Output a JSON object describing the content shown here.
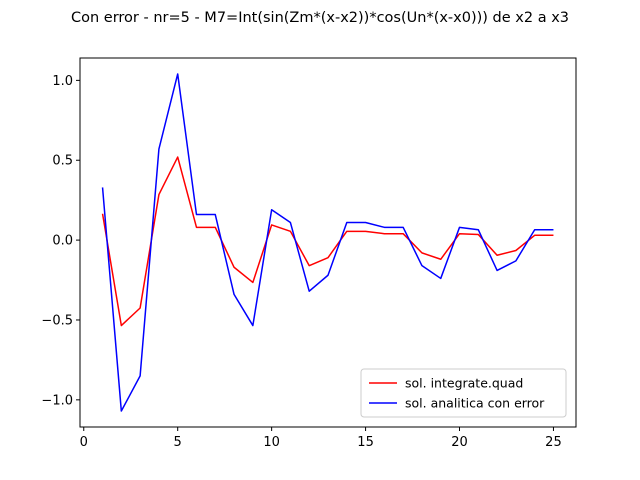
{
  "chart_data": {
    "type": "line",
    "title": "Con error - nr=5 - M7=Int(sin(Zm*(x-x2))*cos(Un*(x-x0))) de x2 a x3",
    "xlabel": "",
    "ylabel": "",
    "xlim": [
      -0.2,
      26.2
    ],
    "ylim": [
      -1.17,
      1.14
    ],
    "xticks": [
      0,
      5,
      10,
      15,
      20,
      25
    ],
    "xtick_labels": [
      "0",
      "5",
      "10",
      "15",
      "20",
      "25"
    ],
    "yticks": [
      -1.0,
      -0.5,
      0.0,
      0.5,
      1.0
    ],
    "ytick_labels": [
      "−1.0",
      "−0.5",
      "0.0",
      "0.5",
      "1.0"
    ],
    "grid": false,
    "legend_position": "lower-right",
    "x": [
      1,
      2,
      3,
      4,
      5,
      6,
      7,
      8,
      9,
      10,
      11,
      12,
      13,
      14,
      15,
      16,
      17,
      18,
      19,
      20,
      21,
      22,
      23,
      24,
      25
    ],
    "series": [
      {
        "name": "sol. integrate.quad",
        "color": "#ff0000",
        "values": [
          0.165,
          -0.535,
          -0.425,
          0.285,
          0.52,
          0.08,
          0.08,
          -0.17,
          -0.265,
          0.095,
          0.055,
          -0.16,
          -0.11,
          0.055,
          0.055,
          0.04,
          0.04,
          -0.08,
          -0.12,
          0.04,
          0.035,
          -0.095,
          -0.065,
          0.03,
          0.03
        ]
      },
      {
        "name": "sol. analitica con error",
        "color": "#0000ff",
        "values": [
          0.33,
          -1.07,
          -0.85,
          0.57,
          1.04,
          0.16,
          0.16,
          -0.34,
          -0.535,
          0.19,
          0.11,
          -0.32,
          -0.22,
          0.11,
          0.11,
          0.08,
          0.08,
          -0.16,
          -0.24,
          0.08,
          0.065,
          -0.19,
          -0.13,
          0.065,
          0.065
        ]
      }
    ]
  }
}
